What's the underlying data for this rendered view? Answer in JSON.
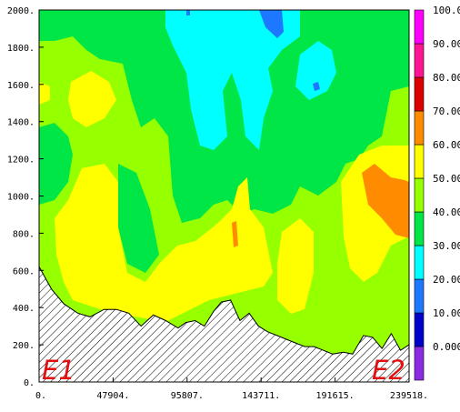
{
  "chart_data": {
    "type": "heatmap",
    "title": "",
    "xlabel": "",
    "ylabel": "",
    "xlim": [
      0,
      239518
    ],
    "ylim": [
      0,
      2000
    ],
    "x_ticks": [
      "0.",
      "47904.",
      "95807.",
      "143711.",
      "191615.",
      "239518."
    ],
    "x_tick_values": [
      0,
      47904,
      95807,
      143711,
      191615,
      239518
    ],
    "y_ticks": [
      "0.",
      "200.",
      "400.",
      "600.",
      "800.",
      "1000.",
      "1200.",
      "1400.",
      "1600.",
      "1800.",
      "2000."
    ],
    "y_tick_values": [
      0,
      200,
      400,
      600,
      800,
      1000,
      1200,
      1400,
      1600,
      1800,
      2000
    ],
    "colorbar": {
      "labels": [
        "0.000",
        "10.00",
        "20.00",
        "30.00",
        "40.00",
        "50.00",
        "60.00",
        "70.00",
        "80.00",
        "90.00",
        "100.0"
      ],
      "levels": [
        0,
        10,
        20,
        30,
        40,
        50,
        60,
        70,
        80,
        90,
        100
      ],
      "colors": [
        "#8b2be2",
        "#0000c8",
        "#1e78ff",
        "#00ffff",
        "#00e646",
        "#96ff00",
        "#ffff00",
        "#ff8c00",
        "#dc0000",
        "#ff1493",
        "#ff00ff"
      ]
    },
    "field_colors": {
      "band_40_50": "#00e646",
      "band_50_60": "#96ff00",
      "band_60_70": "#ffff00",
      "band_70_80": "#ff8c00",
      "band_30_40": "#00ffff",
      "band_20_30": "#1e78ff"
    },
    "terrain": {
      "x": [
        0,
        8000,
        16000,
        25000,
        33000,
        42000,
        50000,
        58000,
        66000,
        74000,
        82000,
        90000,
        95000,
        101000,
        107000,
        113000,
        118000,
        124000,
        130000,
        136000,
        142000,
        148000,
        154000,
        160000,
        166000,
        172000,
        178000,
        184000,
        190000,
        197000,
        203000,
        210000,
        216000,
        222000,
        228000,
        234000,
        239518
      ],
      "y": [
        620,
        500,
        420,
        370,
        350,
        390,
        390,
        370,
        300,
        360,
        330,
        290,
        320,
        330,
        300,
        380,
        430,
        440,
        330,
        370,
        300,
        270,
        250,
        230,
        210,
        190,
        190,
        170,
        150,
        160,
        150,
        250,
        240,
        180,
        260,
        170,
        200
      ]
    }
  },
  "labels": {
    "left_marker": "E1",
    "right_marker": "E2"
  }
}
